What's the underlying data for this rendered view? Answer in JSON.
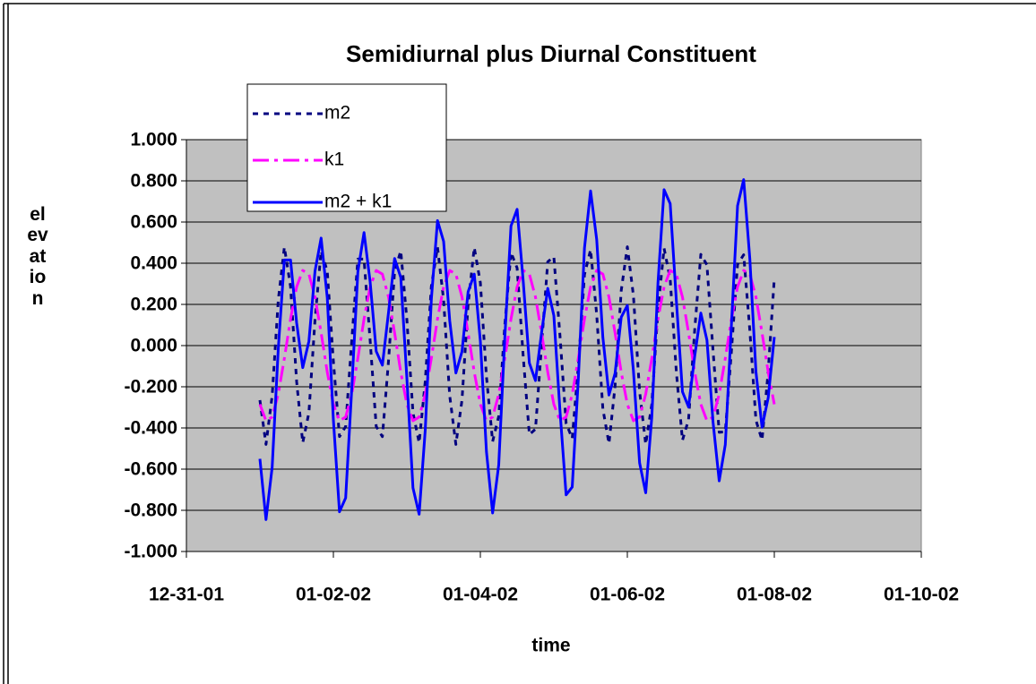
{
  "chart_data": {
    "type": "line",
    "title": "Semidiurnal plus Diurnal Constituent",
    "xlabel": "time",
    "ylabel": "elevation",
    "legend": "upper left",
    "grid": true,
    "xlim": [
      0,
      10
    ],
    "xticks": [
      {
        "value": 0,
        "label": "12-31-01"
      },
      {
        "value": 2,
        "label": "01-02-02"
      },
      {
        "value": 4,
        "label": "01-04-02"
      },
      {
        "value": 6,
        "label": "01-06-02"
      },
      {
        "value": 8,
        "label": "01-08-02"
      },
      {
        "value": 10,
        "label": "01-10-02"
      }
    ],
    "ylim": [
      -1,
      1
    ],
    "yticks": [
      {
        "value": -1,
        "label": "-1.000"
      },
      {
        "value": -0.8,
        "label": "-0.800"
      },
      {
        "value": -0.6,
        "label": "-0.600"
      },
      {
        "value": -0.4,
        "label": "-0.400"
      },
      {
        "value": -0.2,
        "label": "-0.200"
      },
      {
        "value": 0,
        "label": "0.000"
      },
      {
        "value": 0.2,
        "label": "0.200"
      },
      {
        "value": 0.4,
        "label": "0.400"
      },
      {
        "value": 0.6,
        "label": "0.600"
      },
      {
        "value": 0.8,
        "label": "0.800"
      },
      {
        "value": 1,
        "label": "1.000"
      }
    ],
    "x": [
      1,
      1.083,
      1.167,
      1.25,
      1.333,
      1.417,
      1.5,
      1.583,
      1.667,
      1.75,
      1.833,
      1.917,
      2,
      2.083,
      2.167,
      2.25,
      2.333,
      2.417,
      2.5,
      2.583,
      2.667,
      2.75,
      2.833,
      2.917,
      3,
      3.083,
      3.167,
      3.25,
      3.333,
      3.417,
      3.5,
      3.583,
      3.667,
      3.75,
      3.833,
      3.917,
      4,
      4.083,
      4.167,
      4.25,
      4.333,
      4.417,
      4.5,
      4.583,
      4.667,
      4.75,
      4.833,
      4.917,
      5,
      5.083,
      5.167,
      5.25,
      5.333,
      5.417,
      5.5,
      5.583,
      5.667,
      5.75,
      5.833,
      5.917,
      6,
      6.083,
      6.167,
      6.25,
      6.333,
      6.417,
      6.5,
      6.583,
      6.667,
      6.75,
      6.833,
      6.917,
      7,
      7.083,
      7.167,
      7.25,
      7.333,
      7.417,
      7.5,
      7.583,
      7.667,
      7.75,
      7.833,
      7.917,
      8
    ],
    "series": [
      {
        "name": "m2",
        "color": "#000080",
        "dash": "6,6",
        "values": [
          -0.265,
          -0.48,
          -0.244,
          0.221,
          0.478,
          0.287,
          -0.175,
          -0.472,
          -0.326,
          0.126,
          0.46,
          0.361,
          -0.076,
          -0.442,
          -0.393,
          0.026,
          0.42,
          0.42,
          0.025,
          -0.393,
          -0.442,
          -0.076,
          0.361,
          0.46,
          0.126,
          -0.326,
          -0.472,
          -0.174,
          0.287,
          0.478,
          0.221,
          -0.244,
          -0.48,
          -0.265,
          0.199,
          0.476,
          0.306,
          -0.151,
          -0.466,
          -0.343,
          0.102,
          0.452,
          0.377,
          -0.052,
          -0.432,
          -0.406,
          0.001,
          0.407,
          0.431,
          0.05,
          -0.378,
          -0.451,
          -0.1,
          0.345,
          0.466,
          0.15,
          -0.307,
          -0.476,
          -0.197,
          0.267,
          0.48,
          0.242,
          -0.223,
          -0.479,
          -0.285,
          0.176,
          0.472,
          0.324,
          -0.128,
          -0.46,
          -0.36,
          0.078,
          0.443,
          0.392,
          -0.027,
          -0.421,
          -0.419,
          -0.024,
          0.394,
          0.441,
          0.074,
          -0.363,
          -0.459,
          -0.124,
          0.327
        ]
      },
      {
        "name": "k1",
        "color": "#ff00ff",
        "dash": "18,6,4,6",
        "values": [
          -0.285,
          -0.365,
          -0.347,
          -0.236,
          -0.062,
          0.129,
          0.285,
          0.365,
          0.347,
          0.236,
          0.062,
          -0.129,
          -0.285,
          -0.365,
          -0.347,
          -0.236,
          -0.062,
          0.129,
          0.285,
          0.365,
          0.347,
          0.236,
          0.062,
          -0.129,
          -0.285,
          -0.365,
          -0.347,
          -0.236,
          -0.062,
          0.129,
          0.285,
          0.365,
          0.347,
          0.236,
          0.062,
          -0.129,
          -0.285,
          -0.365,
          -0.347,
          -0.236,
          -0.062,
          0.129,
          0.285,
          0.365,
          0.347,
          0.236,
          0.062,
          -0.129,
          -0.285,
          -0.365,
          -0.347,
          -0.236,
          -0.062,
          0.129,
          0.285,
          0.365,
          0.347,
          0.236,
          0.062,
          -0.129,
          -0.285,
          -0.365,
          -0.347,
          -0.236,
          -0.062,
          0.129,
          0.285,
          0.365,
          0.347,
          0.236,
          0.062,
          -0.129,
          -0.285,
          -0.365,
          -0.347,
          -0.236,
          -0.062,
          0.129,
          0.285,
          0.365,
          0.347,
          0.236,
          0.062,
          -0.129,
          -0.285
        ]
      },
      {
        "name": "m2 + k1",
        "color": "#0000ff",
        "dash": "none",
        "values": [
          -0.55,
          -0.845,
          -0.591,
          -0.015,
          0.416,
          0.416,
          0.11,
          -0.107,
          0.021,
          0.362,
          0.522,
          0.232,
          -0.361,
          -0.807,
          -0.74,
          -0.21,
          0.358,
          0.549,
          0.31,
          -0.028,
          -0.095,
          0.16,
          0.423,
          0.331,
          -0.159,
          -0.691,
          -0.819,
          -0.41,
          0.225,
          0.607,
          0.506,
          0.121,
          -0.133,
          -0.029,
          0.261,
          0.347,
          0.021,
          -0.516,
          -0.813,
          -0.579,
          0.04,
          0.581,
          0.662,
          0.313,
          -0.085,
          -0.17,
          0.063,
          0.278,
          0.146,
          -0.315,
          -0.725,
          -0.687,
          -0.162,
          0.474,
          0.751,
          0.515,
          0.04,
          -0.24,
          -0.135,
          0.138,
          0.195,
          -0.123,
          -0.57,
          -0.715,
          -0.347,
          0.305,
          0.757,
          0.689,
          0.219,
          -0.224,
          -0.298,
          -0.051,
          0.158,
          0.027,
          -0.374,
          -0.657,
          -0.481,
          0.105,
          0.679,
          0.806,
          0.421,
          -0.127,
          -0.397,
          -0.253,
          0.042
        ]
      }
    ]
  }
}
